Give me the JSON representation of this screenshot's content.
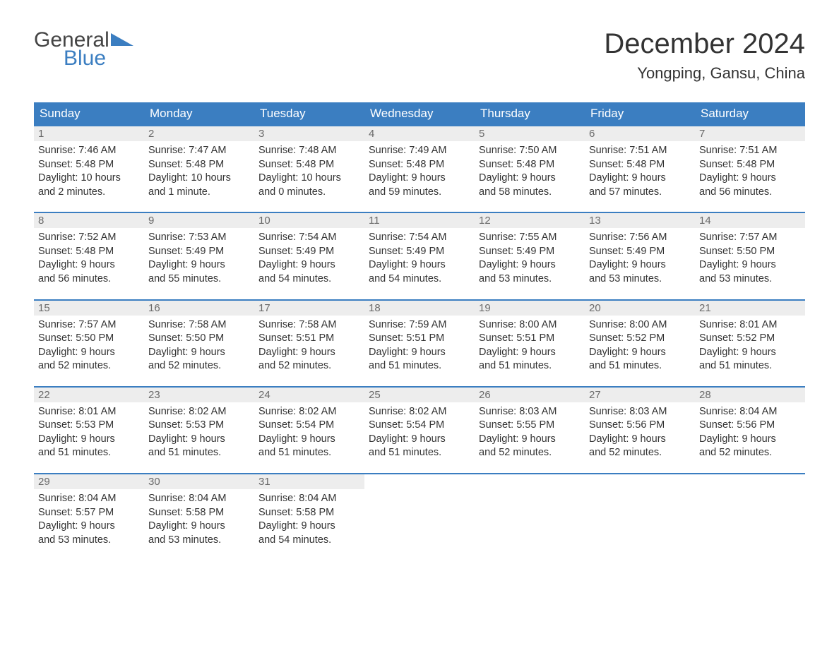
{
  "logo": {
    "line1": "General",
    "line2": "Blue",
    "tri_color": "#3b7ec1"
  },
  "title": "December 2024",
  "location": "Yongping, Gansu, China",
  "header_bg": "#3b7ec1",
  "header_text_color": "#ffffff",
  "daynum_bg": "#ededed",
  "daynum_color": "#6a6a6a",
  "week_border_color": "#3b7ec1",
  "body_color": "#333333",
  "background_color": "#ffffff",
  "day_names": [
    "Sunday",
    "Monday",
    "Tuesday",
    "Wednesday",
    "Thursday",
    "Friday",
    "Saturday"
  ],
  "weeks": [
    [
      {
        "n": "1",
        "sr": "Sunrise: 7:46 AM",
        "ss": "Sunset: 5:48 PM",
        "d1": "Daylight: 10 hours",
        "d2": "and 2 minutes."
      },
      {
        "n": "2",
        "sr": "Sunrise: 7:47 AM",
        "ss": "Sunset: 5:48 PM",
        "d1": "Daylight: 10 hours",
        "d2": "and 1 minute."
      },
      {
        "n": "3",
        "sr": "Sunrise: 7:48 AM",
        "ss": "Sunset: 5:48 PM",
        "d1": "Daylight: 10 hours",
        "d2": "and 0 minutes."
      },
      {
        "n": "4",
        "sr": "Sunrise: 7:49 AM",
        "ss": "Sunset: 5:48 PM",
        "d1": "Daylight: 9 hours",
        "d2": "and 59 minutes."
      },
      {
        "n": "5",
        "sr": "Sunrise: 7:50 AM",
        "ss": "Sunset: 5:48 PM",
        "d1": "Daylight: 9 hours",
        "d2": "and 58 minutes."
      },
      {
        "n": "6",
        "sr": "Sunrise: 7:51 AM",
        "ss": "Sunset: 5:48 PM",
        "d1": "Daylight: 9 hours",
        "d2": "and 57 minutes."
      },
      {
        "n": "7",
        "sr": "Sunrise: 7:51 AM",
        "ss": "Sunset: 5:48 PM",
        "d1": "Daylight: 9 hours",
        "d2": "and 56 minutes."
      }
    ],
    [
      {
        "n": "8",
        "sr": "Sunrise: 7:52 AM",
        "ss": "Sunset: 5:48 PM",
        "d1": "Daylight: 9 hours",
        "d2": "and 56 minutes."
      },
      {
        "n": "9",
        "sr": "Sunrise: 7:53 AM",
        "ss": "Sunset: 5:49 PM",
        "d1": "Daylight: 9 hours",
        "d2": "and 55 minutes."
      },
      {
        "n": "10",
        "sr": "Sunrise: 7:54 AM",
        "ss": "Sunset: 5:49 PM",
        "d1": "Daylight: 9 hours",
        "d2": "and 54 minutes."
      },
      {
        "n": "11",
        "sr": "Sunrise: 7:54 AM",
        "ss": "Sunset: 5:49 PM",
        "d1": "Daylight: 9 hours",
        "d2": "and 54 minutes."
      },
      {
        "n": "12",
        "sr": "Sunrise: 7:55 AM",
        "ss": "Sunset: 5:49 PM",
        "d1": "Daylight: 9 hours",
        "d2": "and 53 minutes."
      },
      {
        "n": "13",
        "sr": "Sunrise: 7:56 AM",
        "ss": "Sunset: 5:49 PM",
        "d1": "Daylight: 9 hours",
        "d2": "and 53 minutes."
      },
      {
        "n": "14",
        "sr": "Sunrise: 7:57 AM",
        "ss": "Sunset: 5:50 PM",
        "d1": "Daylight: 9 hours",
        "d2": "and 53 minutes."
      }
    ],
    [
      {
        "n": "15",
        "sr": "Sunrise: 7:57 AM",
        "ss": "Sunset: 5:50 PM",
        "d1": "Daylight: 9 hours",
        "d2": "and 52 minutes."
      },
      {
        "n": "16",
        "sr": "Sunrise: 7:58 AM",
        "ss": "Sunset: 5:50 PM",
        "d1": "Daylight: 9 hours",
        "d2": "and 52 minutes."
      },
      {
        "n": "17",
        "sr": "Sunrise: 7:58 AM",
        "ss": "Sunset: 5:51 PM",
        "d1": "Daylight: 9 hours",
        "d2": "and 52 minutes."
      },
      {
        "n": "18",
        "sr": "Sunrise: 7:59 AM",
        "ss": "Sunset: 5:51 PM",
        "d1": "Daylight: 9 hours",
        "d2": "and 51 minutes."
      },
      {
        "n": "19",
        "sr": "Sunrise: 8:00 AM",
        "ss": "Sunset: 5:51 PM",
        "d1": "Daylight: 9 hours",
        "d2": "and 51 minutes."
      },
      {
        "n": "20",
        "sr": "Sunrise: 8:00 AM",
        "ss": "Sunset: 5:52 PM",
        "d1": "Daylight: 9 hours",
        "d2": "and 51 minutes."
      },
      {
        "n": "21",
        "sr": "Sunrise: 8:01 AM",
        "ss": "Sunset: 5:52 PM",
        "d1": "Daylight: 9 hours",
        "d2": "and 51 minutes."
      }
    ],
    [
      {
        "n": "22",
        "sr": "Sunrise: 8:01 AM",
        "ss": "Sunset: 5:53 PM",
        "d1": "Daylight: 9 hours",
        "d2": "and 51 minutes."
      },
      {
        "n": "23",
        "sr": "Sunrise: 8:02 AM",
        "ss": "Sunset: 5:53 PM",
        "d1": "Daylight: 9 hours",
        "d2": "and 51 minutes."
      },
      {
        "n": "24",
        "sr": "Sunrise: 8:02 AM",
        "ss": "Sunset: 5:54 PM",
        "d1": "Daylight: 9 hours",
        "d2": "and 51 minutes."
      },
      {
        "n": "25",
        "sr": "Sunrise: 8:02 AM",
        "ss": "Sunset: 5:54 PM",
        "d1": "Daylight: 9 hours",
        "d2": "and 51 minutes."
      },
      {
        "n": "26",
        "sr": "Sunrise: 8:03 AM",
        "ss": "Sunset: 5:55 PM",
        "d1": "Daylight: 9 hours",
        "d2": "and 52 minutes."
      },
      {
        "n": "27",
        "sr": "Sunrise: 8:03 AM",
        "ss": "Sunset: 5:56 PM",
        "d1": "Daylight: 9 hours",
        "d2": "and 52 minutes."
      },
      {
        "n": "28",
        "sr": "Sunrise: 8:04 AM",
        "ss": "Sunset: 5:56 PM",
        "d1": "Daylight: 9 hours",
        "d2": "and 52 minutes."
      }
    ],
    [
      {
        "n": "29",
        "sr": "Sunrise: 8:04 AM",
        "ss": "Sunset: 5:57 PM",
        "d1": "Daylight: 9 hours",
        "d2": "and 53 minutes."
      },
      {
        "n": "30",
        "sr": "Sunrise: 8:04 AM",
        "ss": "Sunset: 5:58 PM",
        "d1": "Daylight: 9 hours",
        "d2": "and 53 minutes."
      },
      {
        "n": "31",
        "sr": "Sunrise: 8:04 AM",
        "ss": "Sunset: 5:58 PM",
        "d1": "Daylight: 9 hours",
        "d2": "and 54 minutes."
      },
      {
        "empty": true
      },
      {
        "empty": true
      },
      {
        "empty": true
      },
      {
        "empty": true
      }
    ]
  ]
}
